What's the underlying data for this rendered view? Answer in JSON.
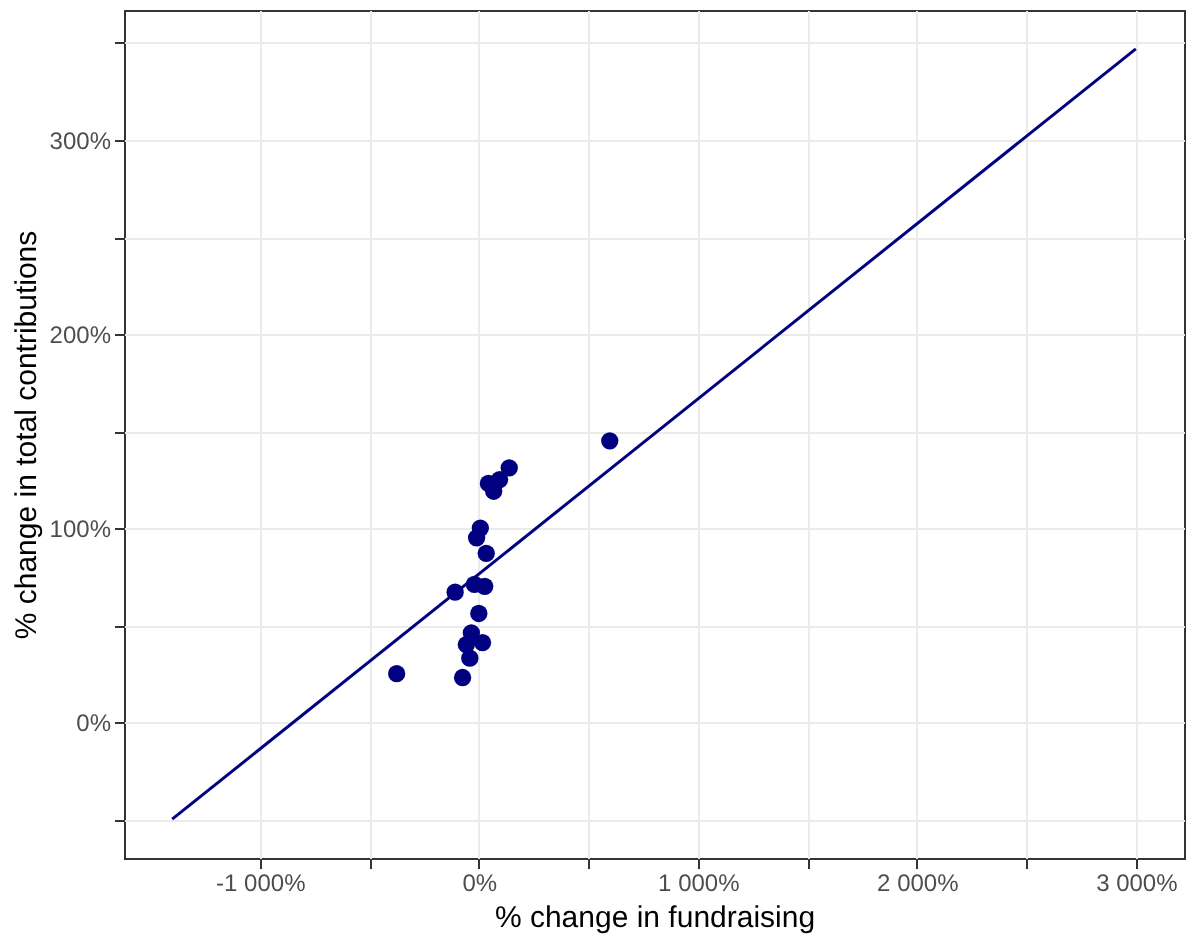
{
  "chart_data": {
    "type": "scatter",
    "xlabel": "% change in fundraising",
    "ylabel": "% change in total contributions",
    "series": [
      {
        "color": "#000080",
        "marker": "circle",
        "x": [
          -375,
          -74,
          -108,
          598,
          139,
          95,
          44,
          68,
          7,
          -10,
          34,
          -20,
          27,
          0,
          -34,
          -57,
          17,
          -41
        ],
        "values": [
          25,
          23,
          67,
          145,
          131,
          125,
          123,
          119,
          100,
          95,
          87,
          71,
          70,
          56,
          46,
          40,
          41,
          33
        ]
      },
      {
        "type": "line",
        "marker": "none",
        "line_style": "solid",
        "color": "#000080",
        "x": [
          -1400,
          3000
        ],
        "values": [
          -50,
          347
        ]
      }
    ],
    "xlim": [
      -1620,
      3220
    ],
    "ylim": [
      -70,
      367
    ],
    "xticks": [
      {
        "value": -1000,
        "label": "-1 000%"
      },
      {
        "value": -500,
        "label": null
      },
      {
        "value": 0,
        "label": "0%"
      },
      {
        "value": 500,
        "label": null
      },
      {
        "value": 1000,
        "label": "1 000%"
      },
      {
        "value": 1500,
        "label": null
      },
      {
        "value": 2000,
        "label": "2 000%"
      },
      {
        "value": 2500,
        "label": null
      },
      {
        "value": 3000,
        "label": "3 000%"
      }
    ],
    "yticks": [
      {
        "value": -50,
        "label": null
      },
      {
        "value": 0,
        "label": "0%"
      },
      {
        "value": 50,
        "label": null
      },
      {
        "value": 100,
        "label": "100%"
      },
      {
        "value": 150,
        "label": null
      },
      {
        "value": 200,
        "label": "200%"
      },
      {
        "value": 250,
        "label": null
      },
      {
        "value": 300,
        "label": "300%"
      },
      {
        "value": 350,
        "label": null
      }
    ],
    "grid": true
  }
}
